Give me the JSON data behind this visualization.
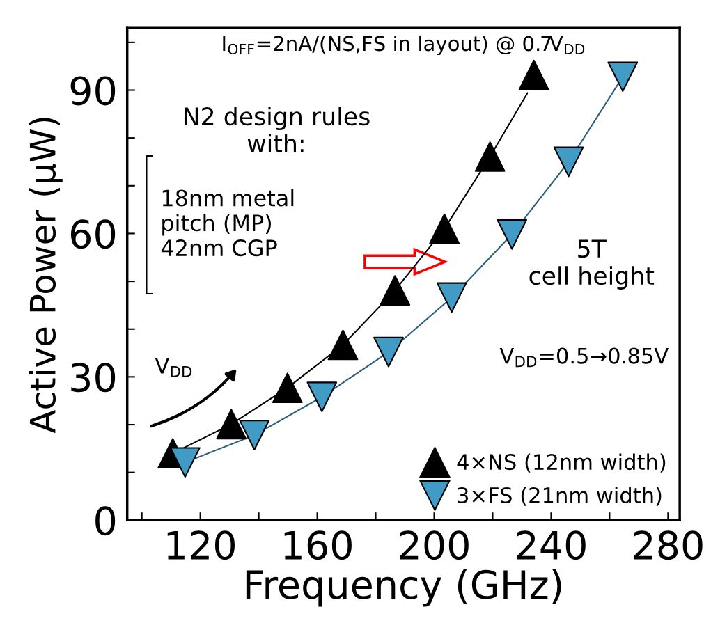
{
  "chart_data": {
    "type": "scatter",
    "xlabel": "Frequency (GHz)",
    "ylabel": "Active Power (μW)",
    "xlim": [
      95,
      284
    ],
    "ylim": [
      0,
      103
    ],
    "xticks": [
      {
        "value": 100,
        "label": null
      },
      120,
      {
        "value": 140,
        "label": null
      },
      160,
      {
        "value": 180,
        "label": null
      },
      200,
      {
        "value": 220,
        "label": null
      },
      240,
      {
        "value": 260,
        "label": null
      },
      280
    ],
    "yticks": [
      0,
      {
        "value": 10,
        "label": null
      },
      {
        "value": 20,
        "label": null
      },
      30,
      {
        "value": 40,
        "label": null
      },
      {
        "value": 50,
        "label": null
      },
      60,
      {
        "value": 70,
        "label": null
      },
      {
        "value": 80,
        "label": null
      },
      90,
      {
        "value": 100,
        "label": null
      }
    ],
    "grid": false,
    "legend": "bottom right",
    "line_style": "solid",
    "series": [
      {
        "type": "line",
        "color": "#000000",
        "marker": "none",
        "x": [
          110.6,
          130.6,
          149.8,
          168.8,
          186.6,
          203.5,
          219.1,
          231.9
        ],
        "values": [
          14.0,
          20.1,
          27.7,
          36.7,
          48.1,
          61.0,
          76.1,
          89.4
        ]
      },
      {
        "type": "line",
        "color": "#2a5f7a",
        "marker": "none",
        "x": [
          114.8,
          138.5,
          161.6,
          184.4,
          206.0,
          226.6,
          246.0,
          264.5
        ],
        "values": [
          12.1,
          17.8,
          25.8,
          35.2,
          46.6,
          59.8,
          75.0,
          92.8
        ]
      },
      {
        "name": "4×NS (12nm width)",
        "color": "#000000",
        "marker": "triangle",
        "x": [
          110.6,
          130.6,
          149.8,
          168.8,
          186.6,
          203.5,
          219.1,
          234.1
        ],
        "values": [
          14.0,
          20.1,
          27.7,
          36.7,
          48.1,
          61.0,
          76.1,
          93.2
        ]
      },
      {
        "name": "3×FS (21nm width)",
        "color": "#419bc4",
        "marker": "triangle_down",
        "x": [
          114.8,
          138.5,
          161.6,
          184.4,
          206.0,
          226.6,
          246.0,
          264.5
        ],
        "values": [
          12.1,
          17.8,
          25.8,
          35.2,
          46.6,
          59.8,
          75.0,
          92.8
        ]
      }
    ],
    "annotations": [
      "I$_{OFF}$=2nA/(NS,FS in layout) @ 0.7V$_{DD}$",
      "N2 design rules\nwith:",
      "18nm metal\npitch (MP)\n42nm CGP",
      "5T\ncell height",
      "V$_{DD}$=0.5→0.85V",
      "V$_{DD}$"
    ]
  }
}
